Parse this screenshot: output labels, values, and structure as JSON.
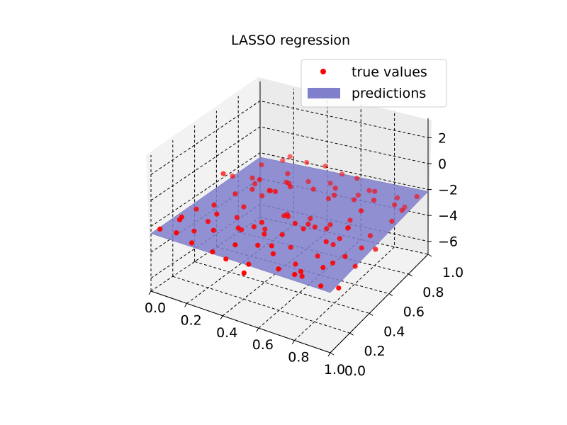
{
  "chart_data": {
    "type": "scatter",
    "subtype": "3d-scatter-with-regression-surface",
    "title": "LASSO regression",
    "xlabel": "",
    "ylabel": "",
    "zlabel": "",
    "xlim": [
      0.0,
      1.0
    ],
    "ylim": [
      0.0,
      1.0
    ],
    "zlim": [
      -7.0,
      3.5
    ],
    "x_ticks": [
      "0.0",
      "0.2",
      "0.4",
      "0.6",
      "0.8",
      "1.0"
    ],
    "y_ticks": [
      "0.0",
      "0.2",
      "0.4",
      "0.6",
      "0.8",
      "1.0"
    ],
    "z_ticks": [
      "2",
      "0",
      "−2",
      "−4",
      "−6"
    ],
    "grid": true,
    "grid_style": "dashed",
    "legend": {
      "placement": "upper-right",
      "entries": [
        {
          "label": "true values",
          "color": "#ff0000",
          "marker": "dot"
        },
        {
          "label": "predictions",
          "color": "#7f7fcc",
          "marker": "patch"
        }
      ]
    },
    "series": [
      {
        "name": "true values",
        "kind": "scatter3d",
        "color": "#ff0000",
        "points": [
          [
            0.02,
            0.05,
            -2.4
          ],
          [
            0.05,
            0.2,
            -2.2
          ],
          [
            0.08,
            0.45,
            -2.6
          ],
          [
            0.03,
            0.7,
            -2.0
          ],
          [
            0.06,
            0.92,
            -2.3
          ],
          [
            0.1,
            0.1,
            -1.6
          ],
          [
            0.12,
            0.33,
            -3.0
          ],
          [
            0.14,
            0.55,
            -2.1
          ],
          [
            0.11,
            0.78,
            -2.8
          ],
          [
            0.16,
            0.96,
            -1.9
          ],
          [
            0.18,
            0.08,
            -2.9
          ],
          [
            0.2,
            0.28,
            -1.8
          ],
          [
            0.22,
            0.5,
            -2.5
          ],
          [
            0.19,
            0.72,
            -3.1
          ],
          [
            0.24,
            0.88,
            -2.2
          ],
          [
            0.26,
            0.15,
            -2.0
          ],
          [
            0.28,
            0.38,
            -3.3
          ],
          [
            0.3,
            0.62,
            -1.7
          ],
          [
            0.27,
            0.82,
            -2.4
          ],
          [
            0.32,
            0.04,
            -2.7
          ],
          [
            0.34,
            0.25,
            -2.1
          ],
          [
            0.36,
            0.47,
            -3.5
          ],
          [
            0.38,
            0.68,
            -1.5
          ],
          [
            0.35,
            0.9,
            -2.6
          ],
          [
            0.4,
            0.12,
            -2.3
          ],
          [
            0.42,
            0.34,
            -1.9
          ],
          [
            0.44,
            0.56,
            -2.8
          ],
          [
            0.46,
            0.77,
            -2.0
          ],
          [
            0.43,
            0.98,
            -3.0
          ],
          [
            0.48,
            0.2,
            -2.5
          ],
          [
            0.5,
            0.42,
            -1.6
          ],
          [
            0.52,
            0.64,
            -3.2
          ],
          [
            0.54,
            0.85,
            -2.2
          ],
          [
            0.51,
            0.06,
            -2.9
          ],
          [
            0.56,
            0.3,
            -2.0
          ],
          [
            0.58,
            0.52,
            -2.6
          ],
          [
            0.6,
            0.74,
            -1.8
          ],
          [
            0.62,
            0.94,
            -3.1
          ],
          [
            0.59,
            0.16,
            -2.4
          ],
          [
            0.64,
            0.37,
            -1.7
          ],
          [
            0.66,
            0.6,
            -2.9
          ],
          [
            0.68,
            0.8,
            -2.3
          ],
          [
            0.7,
            0.02,
            -2.1
          ],
          [
            0.67,
            0.24,
            -3.4
          ],
          [
            0.72,
            0.46,
            -2.0
          ],
          [
            0.74,
            0.66,
            -2.7
          ],
          [
            0.76,
            0.87,
            -1.9
          ],
          [
            0.78,
            0.1,
            -2.5
          ],
          [
            0.75,
            0.32,
            -3.0
          ],
          [
            0.8,
            0.54,
            -2.2
          ],
          [
            0.82,
            0.76,
            -1.6
          ],
          [
            0.84,
            0.96,
            -2.8
          ],
          [
            0.86,
            0.18,
            -2.4
          ],
          [
            0.83,
            0.4,
            -1.9
          ],
          [
            0.88,
            0.62,
            -3.1
          ],
          [
            0.9,
            0.83,
            -2.2
          ],
          [
            0.92,
            0.05,
            -2.6
          ],
          [
            0.94,
            0.26,
            -1.8
          ],
          [
            0.91,
            0.48,
            -2.9
          ],
          [
            0.96,
            0.7,
            -2.3
          ],
          [
            0.98,
            0.92,
            -2.0
          ],
          [
            0.97,
            0.14,
            -3.2
          ],
          [
            0.04,
            0.6,
            -1.2
          ],
          [
            0.15,
            0.85,
            -3.6
          ],
          [
            0.25,
            0.6,
            -0.9
          ],
          [
            0.33,
            0.15,
            -3.9
          ],
          [
            0.45,
            0.9,
            -1.1
          ],
          [
            0.55,
            0.4,
            -3.7
          ],
          [
            0.65,
            0.88,
            -1.3
          ],
          [
            0.73,
            0.2,
            -3.8
          ],
          [
            0.85,
            0.58,
            -1.0
          ],
          [
            0.93,
            0.38,
            -3.5
          ],
          [
            0.09,
            0.25,
            -3.4
          ],
          [
            0.21,
            0.95,
            -1.4
          ],
          [
            0.39,
            0.52,
            -0.8
          ],
          [
            0.49,
            0.05,
            -3.6
          ],
          [
            0.61,
            0.34,
            -1.2
          ],
          [
            0.69,
            0.72,
            -3.9
          ],
          [
            0.81,
            0.3,
            -1.5
          ],
          [
            0.89,
            0.95,
            -3.3
          ],
          [
            0.07,
            0.82,
            -2.7
          ],
          [
            0.13,
            0.02,
            -2.0
          ],
          [
            0.23,
            0.42,
            -2.8
          ],
          [
            0.31,
            0.78,
            -2.1
          ],
          [
            0.37,
            0.35,
            -2.5
          ],
          [
            0.41,
            0.6,
            -3.0
          ],
          [
            0.47,
            0.28,
            -2.2
          ],
          [
            0.53,
            0.8,
            -2.7
          ],
          [
            0.57,
            0.18,
            -2.0
          ],
          [
            0.63,
            0.5,
            -2.5
          ],
          [
            0.71,
            0.9,
            -2.2
          ],
          [
            0.77,
            0.44,
            -2.9
          ],
          [
            0.79,
            0.02,
            -2.1
          ],
          [
            0.87,
            0.26,
            -2.6
          ],
          [
            0.95,
            0.82,
            -2.4
          ],
          [
            0.29,
            0.98,
            -1.8
          ],
          [
            0.17,
            0.66,
            -2.3
          ],
          [
            0.99,
            0.48,
            -2.7
          ],
          [
            0.01,
            0.4,
            -2.9
          ],
          [
            0.5,
            0.98,
            -2.1
          ]
        ]
      },
      {
        "name": "predictions",
        "kind": "surface",
        "color": "#7f7fcc",
        "corners": [
          [
            0.0,
            0.0,
            -2.55
          ],
          [
            1.0,
            0.0,
            -2.35
          ],
          [
            1.0,
            1.0,
            -2.15
          ],
          [
            0.0,
            1.0,
            -2.35
          ]
        ]
      }
    ]
  }
}
